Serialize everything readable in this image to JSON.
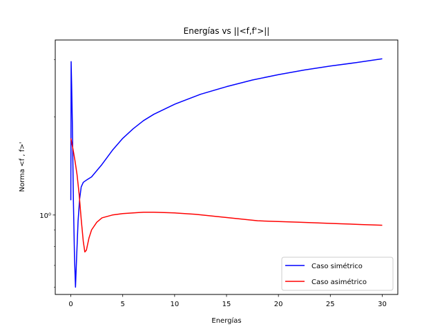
{
  "chart_data": {
    "type": "line",
    "title": "Energías vs ||<f,f'>||",
    "xlabel": "Energías",
    "ylabel": "Norma <f , f>'",
    "xlim": [
      -1.5,
      31.5
    ],
    "ylim": [
      0.57,
      3.45
    ],
    "yscale": "log",
    "grid": false,
    "legend_position": "lower right",
    "x_ticks": [
      0,
      5,
      10,
      15,
      20,
      25,
      30
    ],
    "x_tick_labels": [
      "0",
      "5",
      "10",
      "15",
      "20",
      "25",
      "30"
    ],
    "y_ticks": [
      1
    ],
    "y_tick_labels": [
      "10⁰"
    ],
    "series": [
      {
        "name": "Caso simétrico",
        "color": "#0000ff",
        "points": [
          [
            0.0,
            1.11
          ],
          [
            0.03,
            2.96
          ],
          [
            0.08,
            2.5
          ],
          [
            0.15,
            1.9
          ],
          [
            0.25,
            1.1
          ],
          [
            0.35,
            0.75
          ],
          [
            0.45,
            0.6
          ],
          [
            0.55,
            0.73
          ],
          [
            0.7,
            0.96
          ],
          [
            0.85,
            1.12
          ],
          [
            1.0,
            1.22
          ],
          [
            1.2,
            1.26
          ],
          [
            1.5,
            1.28
          ],
          [
            2.0,
            1.31
          ],
          [
            3.0,
            1.43
          ],
          [
            4.0,
            1.58
          ],
          [
            5.0,
            1.72
          ],
          [
            6.0,
            1.84
          ],
          [
            7.0,
            1.95
          ],
          [
            8.0,
            2.04
          ],
          [
            10.0,
            2.19
          ],
          [
            12.5,
            2.35
          ],
          [
            15.0,
            2.48
          ],
          [
            17.5,
            2.6
          ],
          [
            20.0,
            2.7
          ],
          [
            22.5,
            2.79
          ],
          [
            25.0,
            2.87
          ],
          [
            27.5,
            2.94
          ],
          [
            30.0,
            3.02
          ]
        ]
      },
      {
        "name": "Caso asimétrico",
        "color": "#ff0000",
        "points": [
          [
            0.0,
            1.72
          ],
          [
            0.2,
            1.6
          ],
          [
            0.4,
            1.47
          ],
          [
            0.6,
            1.33
          ],
          [
            0.8,
            1.16
          ],
          [
            1.0,
            0.97
          ],
          [
            1.2,
            0.83
          ],
          [
            1.35,
            0.77
          ],
          [
            1.5,
            0.78
          ],
          [
            1.75,
            0.85
          ],
          [
            2.0,
            0.9
          ],
          [
            2.5,
            0.95
          ],
          [
            3.0,
            0.98
          ],
          [
            4.0,
            1.0
          ],
          [
            5.0,
            1.01
          ],
          [
            6.0,
            1.015
          ],
          [
            7.0,
            1.02
          ],
          [
            8.0,
            1.02
          ],
          [
            10.0,
            1.015
          ],
          [
            12.0,
            1.005
          ],
          [
            14.0,
            0.99
          ],
          [
            16.0,
            0.975
          ],
          [
            18.0,
            0.96
          ],
          [
            20.0,
            0.955
          ],
          [
            22.0,
            0.95
          ],
          [
            24.0,
            0.945
          ],
          [
            26.0,
            0.94
          ],
          [
            28.0,
            0.935
          ],
          [
            30.0,
            0.93
          ]
        ]
      }
    ]
  }
}
